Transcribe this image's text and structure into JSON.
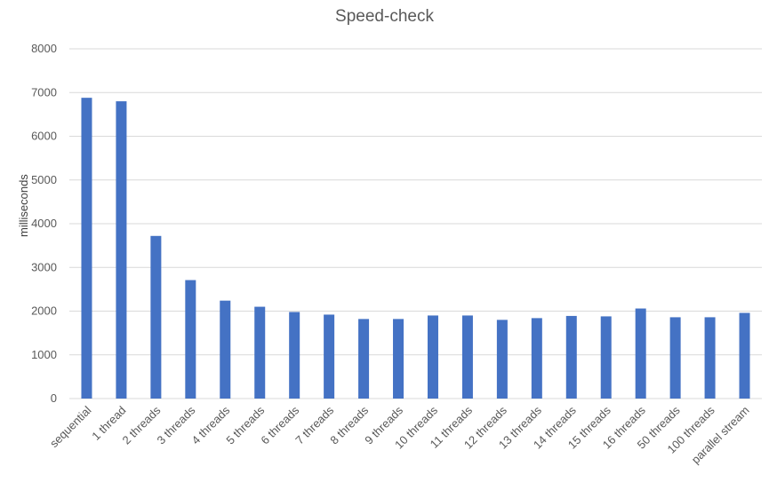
{
  "chart_data": {
    "type": "bar",
    "title": "Speed-check",
    "xlabel": "",
    "ylabel": "milliseconds",
    "ylim": [
      0,
      8000
    ],
    "yticks": [
      0,
      1000,
      2000,
      3000,
      4000,
      5000,
      6000,
      7000,
      8000
    ],
    "grid": true,
    "bar_color": "#4472C4",
    "grid_color": "#d9d9d9",
    "categories": [
      "sequential",
      "1 thread",
      "2 threads",
      "3 threads",
      "4 threads",
      "5 threads",
      "6 threads",
      "7 threads",
      "8 threads",
      "9 threads",
      "10 threads",
      "11 threads",
      "12 threads",
      "13 threads",
      "14 threads",
      "15 threads",
      "16 threads",
      "50 threads",
      "100 threads",
      "parallel stream"
    ],
    "values": [
      6880,
      6800,
      3720,
      2710,
      2240,
      2100,
      1980,
      1920,
      1820,
      1820,
      1900,
      1900,
      1800,
      1840,
      1890,
      1880,
      2060,
      1860,
      1860,
      1960
    ]
  }
}
